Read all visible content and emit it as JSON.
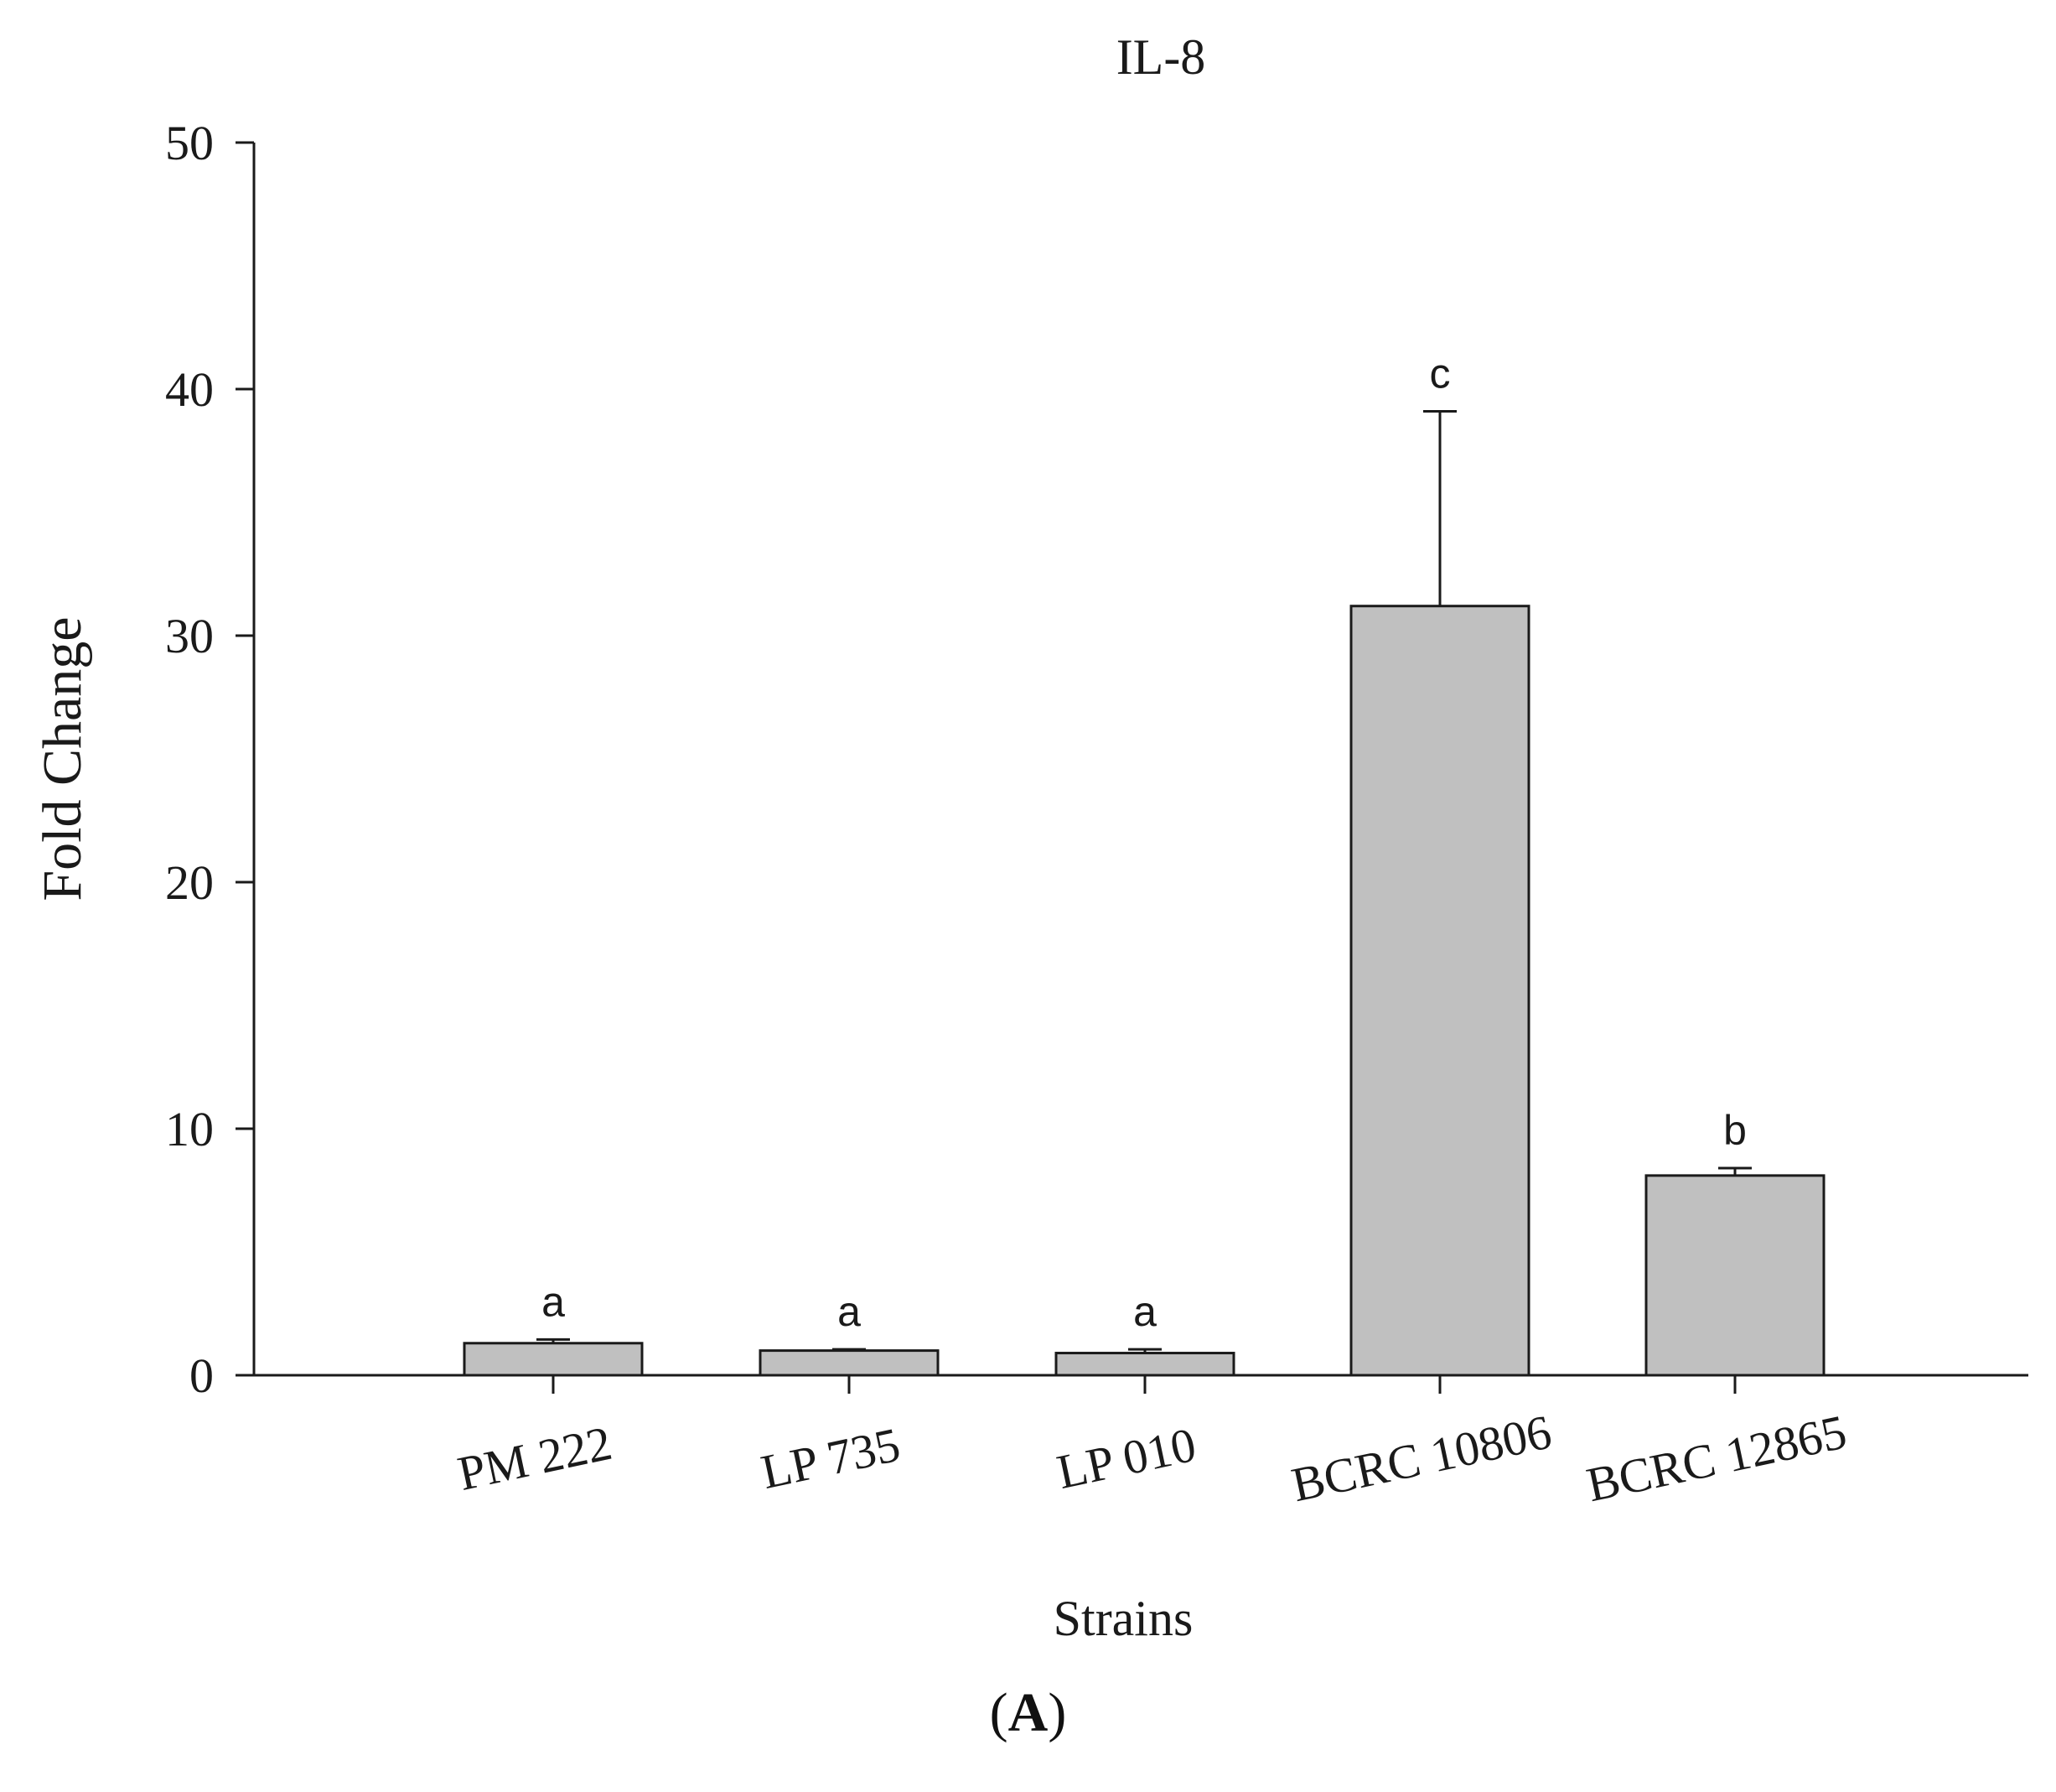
{
  "panel_label": {
    "open": "(",
    "letter": "A",
    "close": ")"
  },
  "chart_data": {
    "type": "bar",
    "title": "IL-8",
    "xlabel": "Strains",
    "ylabel": "Fold Change",
    "ylim": [
      0,
      50
    ],
    "yticks": [
      "0",
      "10",
      "20",
      "30",
      "40",
      "50"
    ],
    "categories": [
      "PM 222",
      "LP 735",
      "LP 010",
      "BCRC 10806",
      "BCRC 12865"
    ],
    "values": [
      1.3,
      1.0,
      0.9,
      31.2,
      8.1
    ],
    "errors": [
      0.15,
      0.05,
      0.15,
      7.9,
      0.3
    ],
    "significance": [
      "a",
      "a",
      "a",
      "c",
      "b"
    ],
    "bar_color": "#c0c0c0",
    "bar_edge_color": "#1a1a1a",
    "grid": false,
    "legend": "none"
  }
}
